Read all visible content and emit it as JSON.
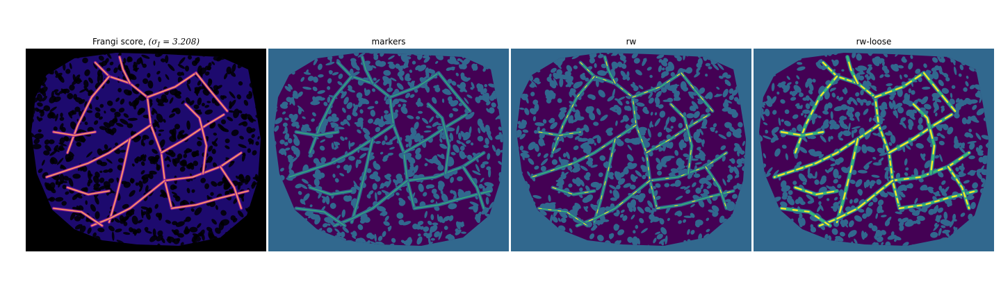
{
  "panels": [
    {
      "id": "frangi",
      "title": "Frangi score, ",
      "title_math": "(σ",
      "title_math_sub": "I",
      "title_math_rest": " = 3.208)",
      "background": "#000000",
      "tissue_color": "#1d0a6e",
      "vessel_colors": [
        "#7b1fa2",
        "#e0427a",
        "#fbb861"
      ],
      "cell_color": "#000000"
    },
    {
      "id": "markers",
      "title": "markers",
      "background": "#31688e",
      "tissue_color": "#440154",
      "vessel_colors": [
        "#35b779"
      ],
      "cell_color": "#31688e"
    },
    {
      "id": "rw",
      "title": "rw",
      "background": "#31688e",
      "tissue_color": "#440154",
      "vessel_colors": [
        "#35b779",
        "#fde725"
      ],
      "cell_color": "#31688e"
    },
    {
      "id": "rw-loose",
      "title": "rw-loose",
      "background": "#31688e",
      "tissue_color": "#440154",
      "vessel_colors": [
        "#35b779",
        "#fde725"
      ],
      "cell_color": "#31688e"
    }
  ]
}
